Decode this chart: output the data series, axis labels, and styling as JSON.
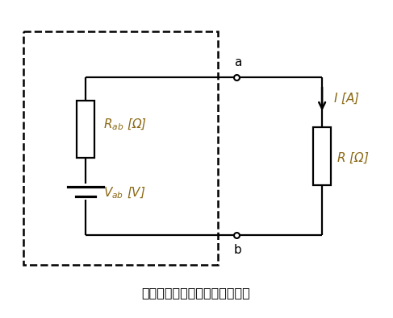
{
  "title": "【テブナンの定理の等価回路】",
  "title_fontsize": 11.5,
  "label_color": "#8B6914",
  "line_color": "#000000",
  "bg_color": "#ffffff",
  "R_ab_label": "$R_{ab}$ [Ω]",
  "V_ab_label": "$V_{ab}$ [V]",
  "R_label": "$R$ [Ω]",
  "I_label": "$I$ [A]",
  "a_label": "a",
  "b_label": "b",
  "lw": 1.6
}
